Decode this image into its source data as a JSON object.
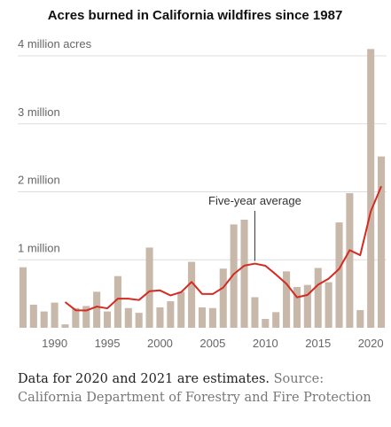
{
  "chart_data": {
    "type": "bar",
    "title": "Acres burned in California wildfires since 1987",
    "x": [
      1987,
      1988,
      1989,
      1990,
      1991,
      1992,
      1993,
      1994,
      1995,
      1996,
      1997,
      1998,
      1999,
      2000,
      2001,
      2002,
      2003,
      2004,
      2005,
      2006,
      2007,
      2008,
      2009,
      2010,
      2011,
      2012,
      2013,
      2014,
      2015,
      2016,
      2017,
      2018,
      2019,
      2020,
      2021
    ],
    "values": [
      890000,
      340000,
      240000,
      370000,
      50000,
      290000,
      320000,
      530000,
      240000,
      760000,
      290000,
      220000,
      1180000,
      300000,
      390000,
      530000,
      970000,
      300000,
      290000,
      870000,
      1520000,
      1590000,
      450000,
      130000,
      230000,
      830000,
      600000,
      630000,
      880000,
      670000,
      1550000,
      1980000,
      260000,
      4100000,
      2520000
    ],
    "color": "#c8b8aa",
    "average": {
      "name": "Five-year average",
      "color": "#d42a20",
      "values": [
        null,
        null,
        null,
        null,
        378000,
        258000,
        254000,
        312000,
        286000,
        428000,
        428000,
        408000,
        538000,
        550000,
        476000,
        524000,
        674000,
        498000,
        496000,
        592000,
        790000,
        914000,
        944000,
        912000,
        784000,
        646000,
        448000,
        484000,
        634000,
        722000,
        866000,
        1142000,
        1068000,
        1712000,
        2082000
      ]
    },
    "annotation_x": 2009,
    "xlim": [
      1986.5,
      2021.5
    ],
    "xticks": [
      1990,
      1995,
      2000,
      2005,
      2010,
      2015,
      2020
    ],
    "ylim": [
      0,
      4300000
    ],
    "yticks": [
      {
        "value": 1000000,
        "label": "1 million"
      },
      {
        "value": 2000000,
        "label": "2 million"
      },
      {
        "value": 3000000,
        "label": "3 million"
      },
      {
        "value": 4000000,
        "label": "4 million acres"
      }
    ],
    "grid": true,
    "note": "Data for 2020 and 2021 are estimates.",
    "source": "Source: California Department of Forestry and Fire Protection"
  }
}
